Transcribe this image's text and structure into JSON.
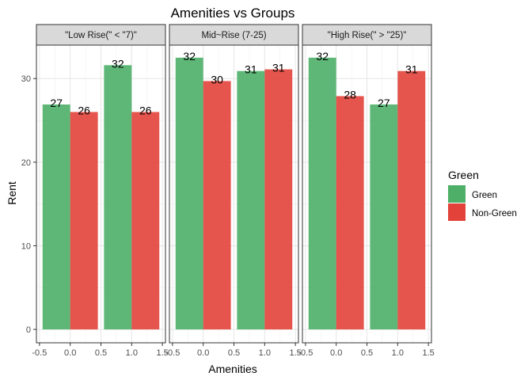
{
  "chart_data": {
    "type": "bar",
    "title": "Amenities vs Groups",
    "xlabel": "Amenities",
    "ylabel": "Rent",
    "xlim": [
      -0.55,
      1.55
    ],
    "ylim": [
      -1.6,
      34.0
    ],
    "x_ticks": [
      -0.5,
      0.0,
      0.5,
      1.0,
      1.5
    ],
    "x_tick_labels": [
      "-0.5",
      "0.0",
      "0.5",
      "1.0",
      "1.5"
    ],
    "y_ticks": [
      0,
      10,
      20,
      30
    ],
    "y_tick_labels": [
      "0",
      "10",
      "20",
      "30"
    ],
    "grid": true,
    "bar_width": 0.45,
    "legend": {
      "title": "Green",
      "position": "right",
      "entries": [
        {
          "label": "Green",
          "color": "#4DAF68"
        },
        {
          "label": "Non-Green",
          "color": "#E2423A"
        }
      ]
    },
    "panels": [
      {
        "label": "\"Low Rise(\" < \"7)\"",
        "categories": [
          0,
          1
        ],
        "series": [
          {
            "name": "Green",
            "color": "#4DAF68",
            "values": [
              26.9,
              31.6
            ],
            "labels": [
              "27",
              "32"
            ]
          },
          {
            "name": "Non-Green",
            "color": "#E2423A",
            "values": [
              26.0,
              26.0
            ],
            "labels": [
              "26",
              "26"
            ]
          }
        ]
      },
      {
        "label": "Mid~Rise (7-25)",
        "categories": [
          0,
          1
        ],
        "series": [
          {
            "name": "Green",
            "color": "#4DAF68",
            "values": [
              32.5,
              30.9
            ],
            "labels": [
              "32",
              "31"
            ]
          },
          {
            "name": "Non-Green",
            "color": "#E2423A",
            "values": [
              29.7,
              31.1
            ],
            "labels": [
              "30",
              "31"
            ]
          }
        ]
      },
      {
        "label": "\"High Rise(\" > \"25)\"",
        "categories": [
          0,
          1
        ],
        "series": [
          {
            "name": "Green",
            "color": "#4DAF68",
            "values": [
              32.5,
              26.9
            ],
            "labels": [
              "32",
              "27"
            ]
          },
          {
            "name": "Non-Green",
            "color": "#E2423A",
            "values": [
              27.9,
              30.9
            ],
            "labels": [
              "28",
              "31"
            ]
          }
        ]
      }
    ]
  }
}
